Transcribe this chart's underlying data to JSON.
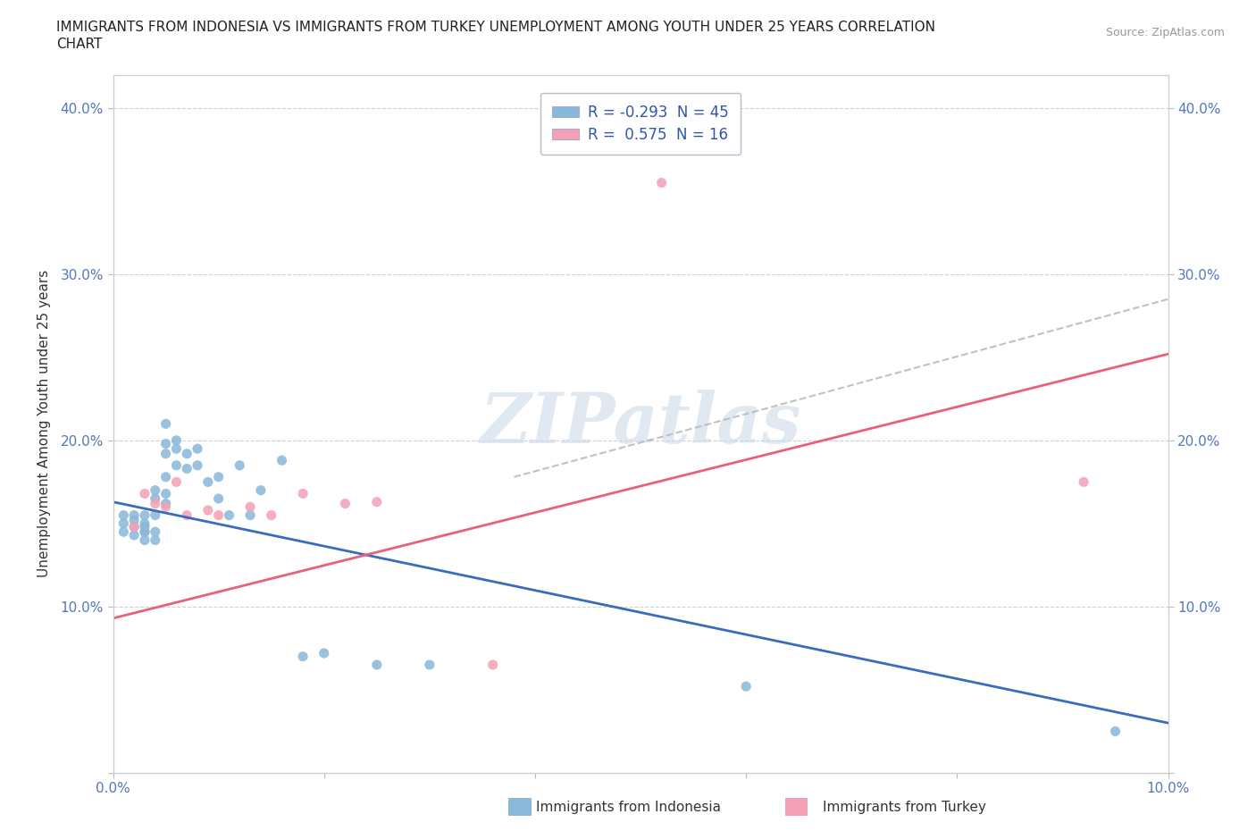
{
  "title_line1": "IMMIGRANTS FROM INDONESIA VS IMMIGRANTS FROM TURKEY UNEMPLOYMENT AMONG YOUTH UNDER 25 YEARS CORRELATION",
  "title_line2": "CHART",
  "source": "Source: ZipAtlas.com",
  "ylabel": "Unemployment Among Youth under 25 years",
  "xlim": [
    0.0,
    0.1
  ],
  "ylim": [
    0.0,
    0.42
  ],
  "x_ticks": [
    0.0,
    0.02,
    0.04,
    0.06,
    0.08,
    0.1
  ],
  "x_tick_labels": [
    "0.0%",
    "",
    "",
    "",
    "",
    "10.0%"
  ],
  "y_ticks": [
    0.0,
    0.1,
    0.2,
    0.3,
    0.4
  ],
  "y_tick_labels": [
    "",
    "10.0%",
    "20.0%",
    "30.0%",
    "40.0%"
  ],
  "R_indonesia": -0.293,
  "N_indonesia": 45,
  "R_turkey": 0.575,
  "N_turkey": 16,
  "color_indonesia": "#89B8D9",
  "color_turkey": "#F4A0B5",
  "color_line_indonesia": "#3A6BBF",
  "color_line_turkey": "#E8607A",
  "color_dashed_line": "#BBBBBB",
  "indo_line_x0": 0.0,
  "indo_line_y0": 0.163,
  "indo_line_x1": 0.1,
  "indo_line_y1": 0.03,
  "turk_line_x0": 0.0,
  "turk_line_y0": 0.093,
  "turk_line_x1": 0.1,
  "turk_line_y1": 0.252,
  "dash_line_x0": 0.038,
  "dash_line_y0": 0.178,
  "dash_line_x1": 0.1,
  "dash_line_y1": 0.285,
  "watermark_text": "ZIPatlas",
  "watermark_color": "#C8D8E8",
  "legend_label_indo": "R = -0.293  N = 45",
  "legend_label_turk": "R =  0.575  N = 16",
  "bottom_legend_indo": "Immigrants from Indonesia",
  "bottom_legend_turk": "Immigrants from Turkey"
}
